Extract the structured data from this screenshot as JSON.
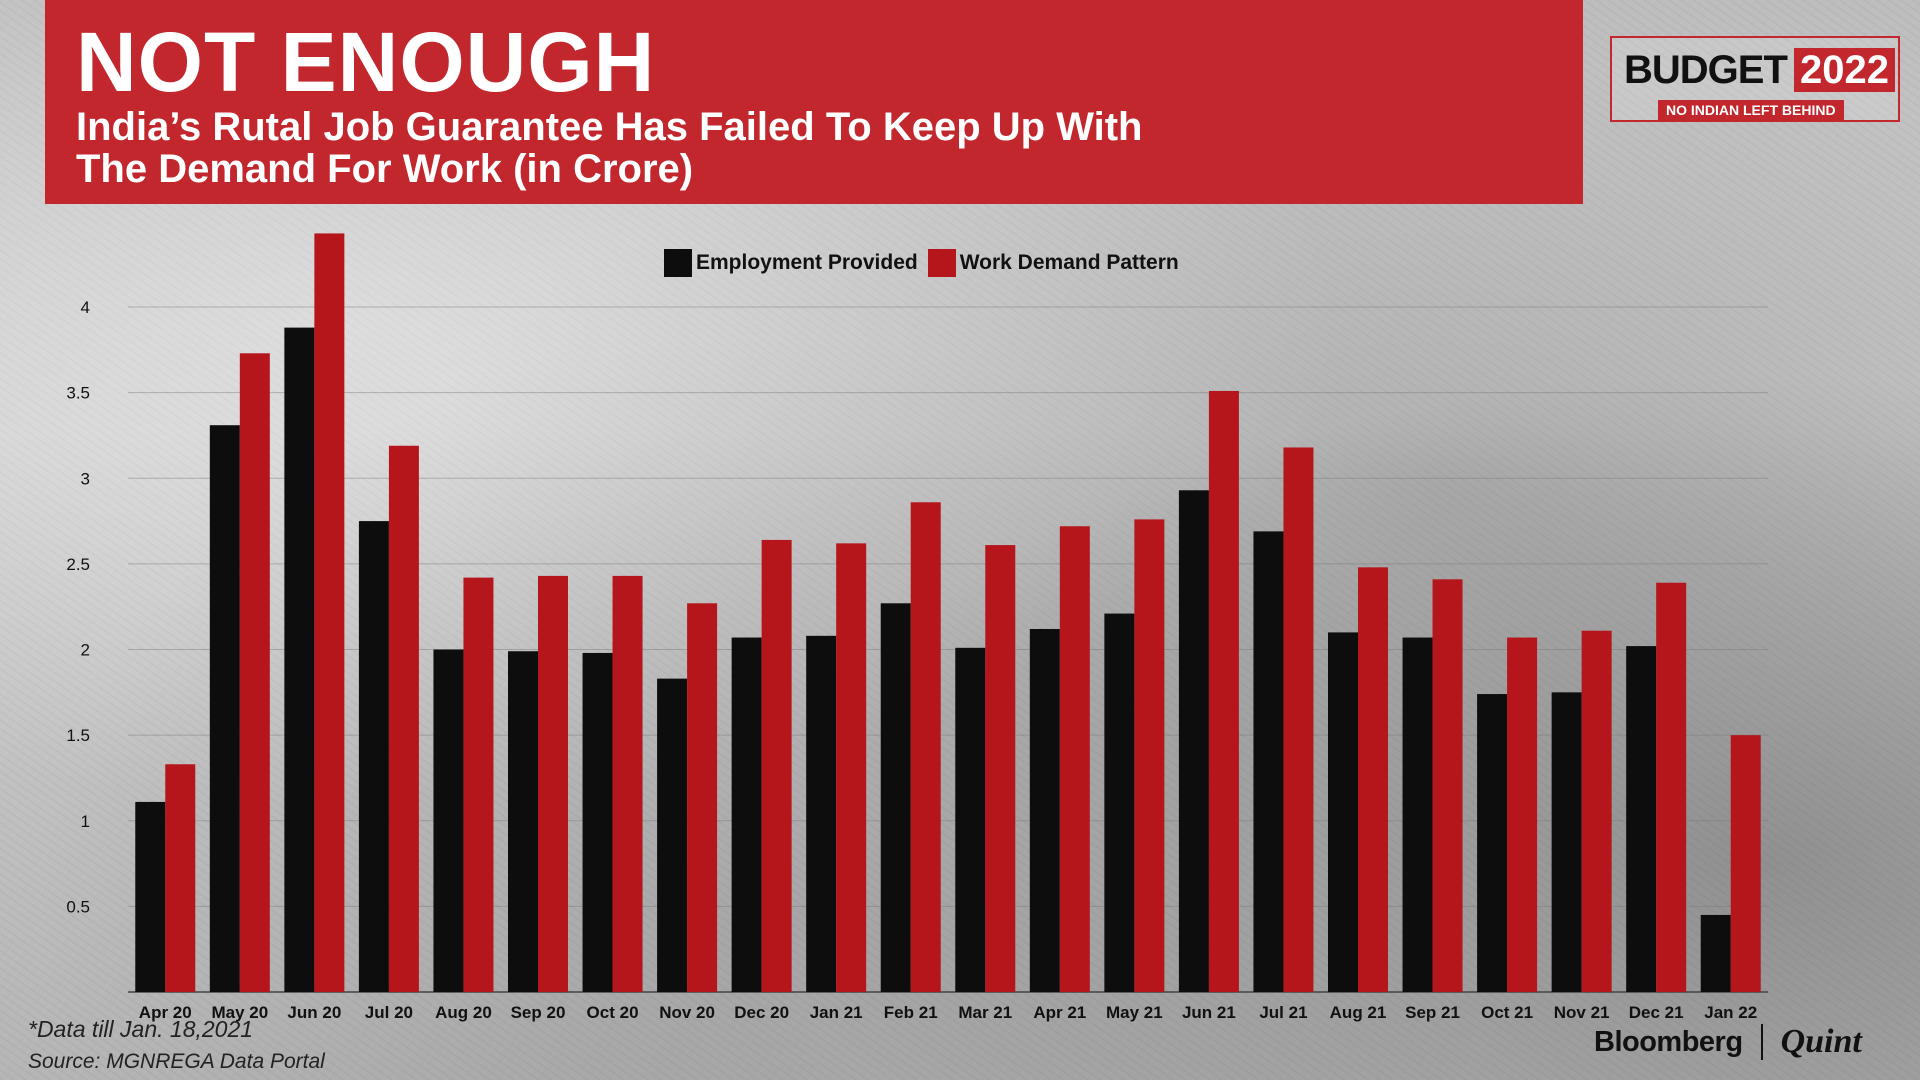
{
  "title": "NOT ENOUGH",
  "subtitle": "India’s Rutal Job Guarantee Has Failed To Keep Up With\nThe Demand For Work (in Crore)",
  "badge": {
    "word": "BUDGET",
    "year": "2022",
    "tagline": "NO INDIAN LEFT BEHIND"
  },
  "footnote": "*Data till Jan. 18,2021",
  "source": "Source: MGNREGA Data Portal",
  "logo": {
    "left": "Bloomberg",
    "right": "Quint"
  },
  "colors": {
    "banner": "#c1272d",
    "employment": "#0d0d0d",
    "demand": "#b5161c"
  },
  "chart_data": {
    "type": "bar",
    "title": "",
    "xlabel": "",
    "ylabel": "",
    "ylim": [
      0,
      4.45
    ],
    "yticks": [
      0.5,
      1,
      1.5,
      2,
      2.5,
      3,
      3.5,
      4
    ],
    "ytick_labels": [
      "0.5",
      "1",
      "1.5",
      "2",
      "2.5",
      "3",
      "3.5",
      "4"
    ],
    "grid": true,
    "legend_position": "top-center",
    "categories": [
      "Apr 20",
      "May 20",
      "Jun 20",
      "Jul 20",
      "Aug 20",
      "Sep 20",
      "Oct 20",
      "Nov 20",
      "Dec 20",
      "Jan 21",
      "Feb 21",
      "Mar 21",
      "Apr 21",
      "May 21",
      "Jun 21",
      "Jul 21",
      "Aug 21",
      "Sep 21",
      "Oct 21",
      "Nov 21",
      "Dec 21",
      "Jan 22"
    ],
    "series": [
      {
        "name": "Employment Provided",
        "color": "#0d0d0d",
        "values": [
          1.11,
          3.31,
          3.88,
          2.75,
          2.0,
          1.99,
          1.98,
          1.83,
          2.07,
          2.08,
          2.27,
          2.01,
          2.12,
          2.21,
          2.93,
          2.69,
          2.1,
          2.07,
          1.74,
          1.75,
          2.02,
          0.45
        ]
      },
      {
        "name": "Work Demand Pattern",
        "color": "#b5161c",
        "values": [
          1.33,
          3.73,
          4.43,
          3.19,
          2.42,
          2.43,
          2.43,
          2.27,
          2.64,
          2.62,
          2.86,
          2.61,
          2.72,
          2.76,
          3.51,
          3.18,
          2.48,
          2.41,
          2.07,
          2.11,
          2.39,
          1.5
        ]
      }
    ]
  }
}
